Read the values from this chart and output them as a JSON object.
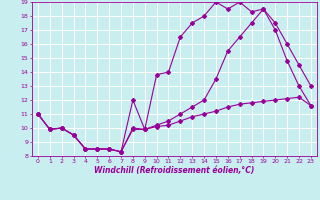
{
  "xlabel": "Windchill (Refroidissement éolien,°C)",
  "xlim": [
    -0.5,
    23.5
  ],
  "ylim": [
    8,
    19
  ],
  "xticks": [
    0,
    1,
    2,
    3,
    4,
    5,
    6,
    7,
    8,
    9,
    10,
    11,
    12,
    13,
    14,
    15,
    16,
    17,
    18,
    19,
    20,
    21,
    22,
    23
  ],
  "yticks": [
    8,
    9,
    10,
    11,
    12,
    13,
    14,
    15,
    16,
    17,
    18,
    19
  ],
  "bg_color": "#c8eef0",
  "line_color": "#990099",
  "grid_color": "#ffffff",
  "series": [
    {
      "x": [
        0,
        1,
        2,
        3,
        4,
        5,
        6,
        7,
        8,
        9,
        10,
        11,
        12,
        13,
        14,
        15,
        16,
        17,
        18,
        19,
        20,
        21,
        22,
        23
      ],
      "y": [
        11,
        9.9,
        10,
        9.5,
        8.5,
        8.5,
        8.5,
        8.3,
        10.0,
        9.9,
        10.1,
        10.2,
        10.5,
        10.8,
        11.0,
        11.2,
        11.5,
        11.7,
        11.8,
        11.9,
        12.0,
        12.1,
        12.2,
        11.6
      ]
    },
    {
      "x": [
        0,
        1,
        2,
        3,
        4,
        5,
        6,
        7,
        8,
        9,
        10,
        11,
        12,
        13,
        14,
        15,
        16,
        17,
        18,
        19,
        20,
        21,
        22,
        23
      ],
      "y": [
        11,
        9.9,
        10,
        9.5,
        8.5,
        8.5,
        8.5,
        8.3,
        9.9,
        9.9,
        10.2,
        10.5,
        11.0,
        11.5,
        12.0,
        13.5,
        15.5,
        16.5,
        17.5,
        18.5,
        17.0,
        14.8,
        13.0,
        11.6
      ]
    },
    {
      "x": [
        0,
        1,
        2,
        3,
        4,
        5,
        6,
        7,
        8,
        9,
        10,
        11,
        12,
        13,
        14,
        15,
        16,
        17,
        18,
        19,
        20,
        21,
        22,
        23
      ],
      "y": [
        11,
        9.9,
        10,
        9.5,
        8.5,
        8.5,
        8.5,
        8.3,
        12.0,
        9.9,
        13.8,
        14.0,
        16.5,
        17.5,
        18.0,
        19.0,
        18.5,
        19.0,
        18.3,
        18.5,
        17.5,
        16.0,
        14.5,
        13.0
      ]
    }
  ]
}
